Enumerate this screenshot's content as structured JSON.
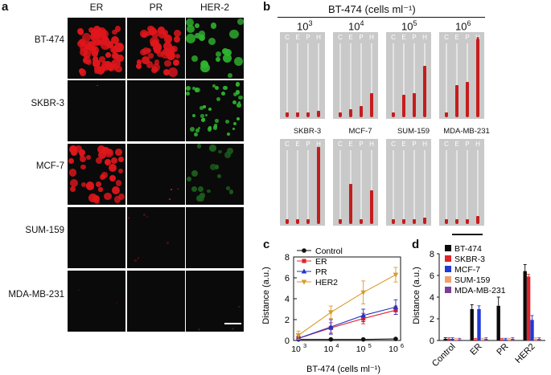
{
  "panel_a": {
    "label": "a",
    "columns": [
      "ER",
      "PR",
      "HER-2"
    ],
    "rows": [
      "BT-474",
      "SKBR-3",
      "MCF-7",
      "SUM-159",
      "MDA-MB-231"
    ]
  },
  "panel_b": {
    "label": "b",
    "title": "BT-474 (cells ml⁻¹)",
    "concentrations": [
      "10",
      "10",
      "10",
      "10"
    ],
    "exponents": [
      "3",
      "4",
      "5",
      "6"
    ],
    "cell_lines": [
      "SKBR-3",
      "MCF-7",
      "SUM-159",
      "MDA-MB-231"
    ],
    "tube_letters": [
      "C",
      "E",
      "P",
      "H"
    ]
  },
  "panel_c": {
    "label": "c"
  },
  "panel_d": {
    "label": "d"
  },
  "chart_data": [
    {
      "type": "line",
      "xlabel": "BT-474 (cells ml⁻¹)",
      "ylabel": "Distance (a.u.)",
      "x": [
        3,
        4,
        5,
        6
      ],
      "xtick_labels": [
        "10",
        "10",
        "10",
        "10"
      ],
      "xtick_exponents": [
        "3",
        "4",
        "5",
        "6"
      ],
      "yticks": [
        "0",
        "2",
        "4",
        "6",
        "8"
      ],
      "ylim": [
        0,
        8
      ],
      "legend_position": "top-left",
      "series": [
        {
          "name": "Control",
          "values": [
            0.1,
            0.1,
            0.1,
            0.15
          ],
          "errors": [
            0.05,
            0.05,
            0.05,
            0.05
          ],
          "color": "#111111",
          "marker": "circle"
        },
        {
          "name": "ER",
          "values": [
            0.2,
            1.2,
            2.1,
            2.9
          ],
          "errors": [
            0.2,
            0.5,
            0.5,
            0.4
          ],
          "color": "#e0242b",
          "marker": "square"
        },
        {
          "name": "PR",
          "values": [
            0.2,
            1.3,
            2.4,
            3.2
          ],
          "errors": [
            0.2,
            0.7,
            0.6,
            0.7
          ],
          "color": "#2432c6",
          "marker": "triangle-up"
        },
        {
          "name": "HER2",
          "values": [
            0.5,
            2.7,
            4.6,
            6.3
          ],
          "errors": [
            0.4,
            0.6,
            1.1,
            0.7
          ],
          "color": "#d99a2b",
          "marker": "triangle-down"
        }
      ]
    },
    {
      "type": "bar",
      "ylabel": "Distance (a.u.)",
      "categories": [
        "Control",
        "ER",
        "PR",
        "HER2"
      ],
      "yticks": [
        "0",
        "2",
        "4",
        "6",
        "8"
      ],
      "ylim": [
        0,
        8
      ],
      "legend_position": "top-left",
      "series": [
        {
          "name": "BT-474",
          "values": [
            0.15,
            2.9,
            3.2,
            6.4
          ],
          "errors": [
            0.1,
            0.4,
            0.8,
            0.6
          ],
          "color": "#0a0a0a"
        },
        {
          "name": "SKBR-3",
          "values": [
            0.15,
            0.1,
            0.1,
            5.9
          ],
          "errors": [
            0.1,
            0.1,
            0.1,
            0.2
          ],
          "color": "#e0242b"
        },
        {
          "name": "MCF-7",
          "values": [
            0.15,
            2.9,
            0.1,
            1.9
          ],
          "errors": [
            0.1,
            0.3,
            0.1,
            0.4
          ],
          "color": "#1f3ad6"
        },
        {
          "name": "SUM-159",
          "values": [
            0.1,
            0.1,
            0.1,
            0.15
          ],
          "errors": [
            0.1,
            0.1,
            0.1,
            0.1
          ],
          "color": "#f0a070"
        },
        {
          "name": "MDA-MB-231",
          "values": [
            0.1,
            0.15,
            0.15,
            0.15
          ],
          "errors": [
            0.1,
            0.1,
            0.1,
            0.1
          ],
          "color": "#7a3e96"
        }
      ]
    }
  ]
}
